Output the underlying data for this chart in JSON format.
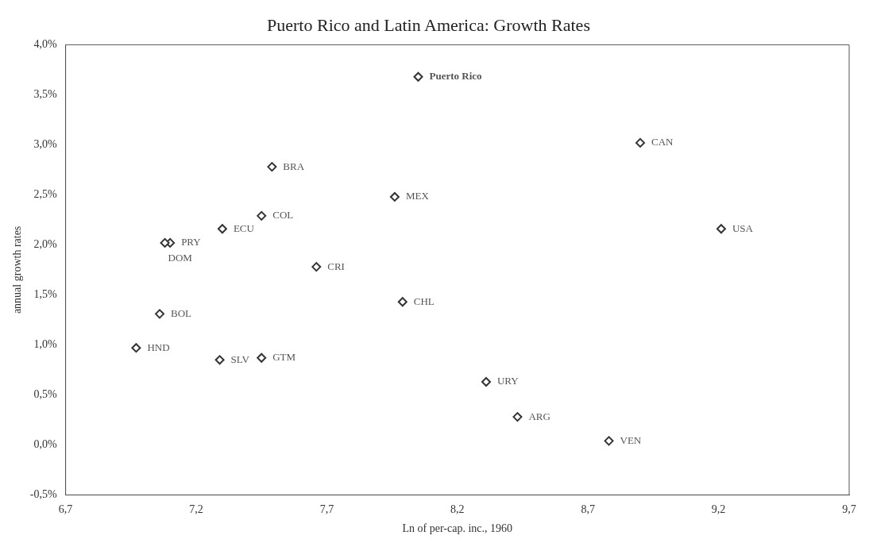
{
  "chart_data": {
    "type": "scatter",
    "title": "Puerto Rico and Latin America: Growth Rates",
    "xlabel": "Ln of per-cap. inc., 1960",
    "ylabel": "annual growth rates",
    "x": [
      8.05,
      8.9,
      7.49,
      7.96,
      7.45,
      7.3,
      9.21,
      7.1,
      7.08,
      7.66,
      7.99,
      7.06,
      6.97,
      7.29,
      7.45,
      8.31,
      8.43,
      8.78
    ],
    "series": [
      {
        "color": "#333333",
        "values": [
          3.68,
          3.02,
          2.78,
          2.48,
          2.29,
          2.16,
          2.16,
          2.02,
          2.02,
          1.78,
          1.43,
          1.31,
          0.97,
          0.85,
          0.87,
          0.63,
          0.28,
          0.04
        ]
      }
    ],
    "marker": "diamond",
    "grid": false,
    "legend": false,
    "xlim": [
      6.7,
      9.7
    ],
    "xticks": [
      {
        "value": 6.7,
        "label": "6,7"
      },
      {
        "value": 7.2,
        "label": "7,2"
      },
      {
        "value": 7.7,
        "label": "7,7"
      },
      {
        "value": 8.2,
        "label": "8,2"
      },
      {
        "value": 8.7,
        "label": "8,7"
      },
      {
        "value": 9.2,
        "label": "9,2"
      },
      {
        "value": 9.7,
        "label": "9,7"
      }
    ],
    "ylim": [
      -0.5,
      4.0
    ],
    "yticks": [
      {
        "value": -0.5,
        "label": "-0,5%"
      },
      {
        "value": 0,
        "label": "0,0%"
      },
      {
        "value": 0.5,
        "label": "0,5%"
      },
      {
        "value": 1.0,
        "label": "1,0%"
      },
      {
        "value": 1.5,
        "label": "1,5%"
      },
      {
        "value": 2.0,
        "label": "2,0%"
      },
      {
        "value": 2.5,
        "label": "2,5%"
      },
      {
        "value": 3.0,
        "label": "3,0%"
      },
      {
        "value": 3.5,
        "label": "3,5%"
      },
      {
        "value": 4.0,
        "label": "4,0%"
      }
    ],
    "annotations": [
      {
        "text": "Puerto Rico",
        "x": 8.05,
        "y": 3.68
      },
      {
        "text": "CAN",
        "x": 8.9,
        "y": 3.02
      },
      {
        "text": "BRA",
        "x": 7.49,
        "y": 2.78
      },
      {
        "text": "MEX",
        "x": 7.96,
        "y": 2.48
      },
      {
        "text": "COL",
        "x": 7.45,
        "y": 2.29
      },
      {
        "text": "ECU",
        "x": 7.3,
        "y": 2.16
      },
      {
        "text": "USA",
        "x": 9.21,
        "y": 2.16
      },
      {
        "text": "PRY",
        "x": 7.1,
        "y": 2.02
      },
      {
        "text": "DOM",
        "x": 7.08,
        "y": 2.02
      },
      {
        "text": "CRI",
        "x": 7.66,
        "y": 1.78
      },
      {
        "text": "CHL",
        "x": 7.99,
        "y": 1.43
      },
      {
        "text": "BOL",
        "x": 7.06,
        "y": 1.31
      },
      {
        "text": "HND",
        "x": 6.97,
        "y": 0.97
      },
      {
        "text": "SLV",
        "x": 7.29,
        "y": 0.85
      },
      {
        "text": "GTM",
        "x": 7.45,
        "y": 0.87
      },
      {
        "text": "URY",
        "x": 8.31,
        "y": 0.63
      },
      {
        "text": "ARG",
        "x": 8.43,
        "y": 0.28
      },
      {
        "text": "VEN",
        "x": 8.78,
        "y": 0.04
      }
    ]
  }
}
